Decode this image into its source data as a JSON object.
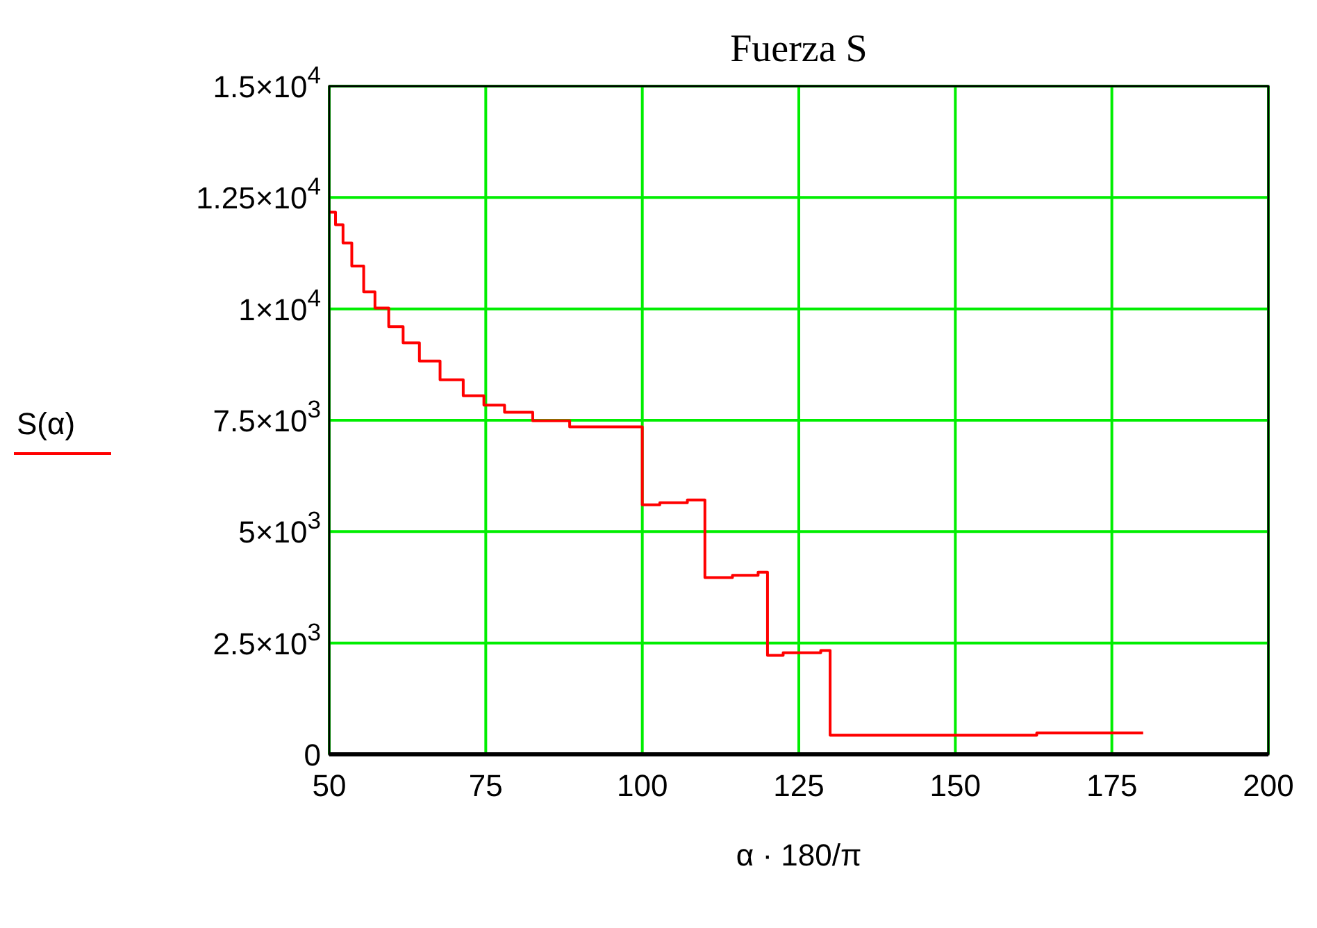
{
  "chart_data": {
    "type": "step",
    "title": "Fuerza S",
    "xlabel": "α · 180/π",
    "ylabel": "S(α)",
    "xlim": [
      50,
      200
    ],
    "xticks": [
      50,
      75,
      100,
      125,
      150,
      175,
      200
    ],
    "ylim": [
      0,
      15000
    ],
    "yticks": [
      {
        "value": 0,
        "label": "0"
      },
      {
        "value": 2500,
        "label": "2.5×10$^{3}$"
      },
      {
        "value": 5000,
        "label": "5×10$^{3}$"
      },
      {
        "value": 7500,
        "label": "7.5×10$^{3}$"
      },
      {
        "value": 10000,
        "label": "1×10$^{4}$"
      },
      {
        "value": 12500,
        "label": "1.25×10$^{4}$"
      },
      {
        "value": 15000,
        "label": "1.5×10$^{4}$"
      }
    ],
    "grid": true,
    "series": [
      {
        "color": "#ff0000",
        "x": [
          50,
          51,
          52.2,
          53.6,
          55.5,
          57.3,
          59.5,
          61.8,
          64.4,
          67.7,
          71.4,
          74.7,
          78,
          82.5,
          88.4,
          100,
          102.8,
          107.2,
          110,
          114.4,
          118.5,
          120,
          122.5,
          128.5,
          130,
          163,
          180
        ],
        "values": [
          12170,
          11890,
          11480,
          10960,
          10380,
          10020,
          9600,
          9240,
          8830,
          8410,
          8050,
          7840,
          7680,
          7490,
          7350,
          5600,
          5650,
          5710,
          3970,
          4020,
          4090,
          2220,
          2280,
          2330,
          430,
          480,
          480
        ]
      }
    ]
  }
}
